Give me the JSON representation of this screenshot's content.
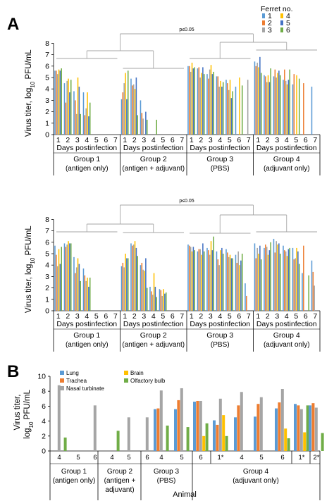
{
  "colors": {
    "ferret": [
      "#5b9bd5",
      "#ed7d31",
      "#a5a5a5",
      "#ffc000",
      "#4472c4",
      "#70ad47"
    ],
    "tissue": {
      "Lung": "#5b9bd5",
      "Trachea": "#ed7d31",
      "Nasal turbinate": "#a5a5a5",
      "Brain": "#ffc000",
      "Olfactory bulb": "#70ad47"
    },
    "bracket": "#a6a6a6"
  },
  "panel_labels": {
    "a": "A",
    "b": "B"
  },
  "legend_a": {
    "title": "Ferret no.",
    "entries": [
      "1",
      "2",
      "3",
      "4",
      "5",
      "6"
    ]
  },
  "chart_data": [
    {
      "type": "bar",
      "panel": "A-top",
      "ylabel": "Virus titer, log10 PFU/mL",
      "ylim": [
        0,
        8
      ],
      "yticks": [
        "0",
        "1",
        "2",
        "3",
        "4",
        "5",
        "6",
        "7",
        "8"
      ],
      "days": [
        "1",
        "2",
        "3",
        "4",
        "5",
        "6",
        "7"
      ],
      "day_axis_label": "Days postinfection",
      "significance": "p≤0.05",
      "groups": [
        {
          "label": [
            "Group 1",
            "(antigen only)"
          ],
          "values": [
            [
              5.6,
              5.6,
              5.3,
              5.7,
              5.6,
              5.8
            ],
            [
              4.5,
              2.8,
              4.7,
              4.9,
              3.7,
              4.8
            ],
            [
              3.8,
              3.0,
              1.8,
              5.0,
              4.2,
              1.8
            ],
            [
              3.7,
              1.7,
              2.3,
              3.7,
              1.6,
              2.8
            ],
            [],
            [],
            []
          ]
        },
        {
          "label": [
            "Group 2",
            "(antigen + adjuvant)"
          ],
          "values": [
            [
              3.1,
              3.7,
              4.5,
              5.4,
              3.1,
              5.6
            ],
            [
              4.9,
              4.3,
              4.4,
              4.0,
              5.0,
              1.7
            ],
            [
              3.0,
              1.9,
              1.4,
              0,
              2.0,
              1.3
            ],
            [
              0,
              0,
              0,
              0,
              0,
              1.3
            ],
            [],
            [],
            []
          ]
        },
        {
          "label": [
            "Group 3",
            "(PBS)"
          ],
          "values": [
            [
              6.0,
              6.0,
              5.5,
              6.3,
              5.8,
              5.9
            ],
            [
              5.8,
              5.9,
              5.0,
              5.4,
              5.9,
              5.3
            ],
            [
              5.3,
              4.9,
              5.7,
              6.1,
              5.3,
              5.5
            ],
            [
              5.1,
              5.1,
              4.2,
              4.7,
              4.2,
              4.6
            ],
            [
              4.8,
              4.5,
              3.9,
              4.8,
              3.2,
              3.8
            ],
            [
              4.2,
              0,
              0,
              5.0,
              0,
              4.3
            ],
            [
              0,
              0,
              4.8,
              0,
              0,
              0
            ]
          ]
        },
        {
          "label": [
            "Group 4",
            "(adjuvant only)"
          ],
          "values": [
            [
              6.4,
              6.0,
              6.3,
              5.9,
              6.8,
              5.4
            ],
            [
              5.2,
              5.1,
              4.6,
              5.2,
              4.6,
              5.8
            ],
            [
              5.1,
              5.7,
              5.0,
              5.4,
              5.6,
              5.2
            ],
            [
              4.8,
              5.7,
              4.7,
              4.4,
              4.8,
              5.7
            ],
            [
              4.4,
              5.3,
              0,
              5.2,
              0,
              4.9
            ],
            [
              0,
              4.5,
              0,
              0,
              0,
              0
            ],
            [
              4.2,
              0,
              0,
              0,
              0,
              0
            ]
          ]
        }
      ]
    },
    {
      "type": "bar",
      "panel": "A-bottom",
      "ylabel": "Virus titer, log10 PFU/mL",
      "ylim": [
        0,
        8
      ],
      "yticks": [
        "0",
        "1",
        "2",
        "3",
        "4",
        "5",
        "6",
        "7",
        "8"
      ],
      "days": [
        "1",
        "2",
        "3",
        "4",
        "5",
        "6",
        "7"
      ],
      "day_axis_label": "Days postinfection",
      "significance": "p≤0.05",
      "groups": [
        {
          "label": [
            "Group 1",
            "(antigen only)"
          ],
          "values": [
            [
              5.7,
              4.9,
              3.9,
              5.4,
              4.1,
              5.6
            ],
            [
              5.9,
              5.6,
              5.8,
              6.1,
              5.9,
              5.9
            ],
            [
              4.7,
              3.3,
              3.8,
              4.6,
              4.1,
              2.6
            ],
            [
              3.7,
              3.1,
              2.6,
              2.9,
              2.1,
              2.9
            ],
            [],
            [],
            []
          ]
        },
        {
          "label": [
            "Group 2",
            "(antigen + adjuvant)"
          ],
          "values": [
            [
              3.9,
              4.2,
              3.8,
              5.0,
              4.6,
              4.6
            ],
            [
              5.9,
              5.7,
              5.8,
              6.1,
              5.5,
              4.8
            ],
            [
              4.0,
              4.2,
              3.6,
              3.5,
              4.6,
              2.0
            ],
            [
              2.1,
              1.7,
              1.4,
              3.3,
              2.1,
              1.2
            ],
            [
              1.9,
              1.8,
              1.3,
              1.9,
              1.5,
              1.6
            ],
            [],
            []
          ]
        },
        {
          "label": [
            "Group 3",
            "(PBS)"
          ],
          "values": [
            [
              5.8,
              5.7,
              5.6,
              5.2,
              5.6,
              5.3
            ],
            [
              5.2,
              5.4,
              5.4,
              4.9,
              5.9,
              5.2
            ],
            [
              5.5,
              5.3,
              4.9,
              6.1,
              5.3,
              6.5
            ],
            [
              5.2,
              4.5,
              4.0,
              5.3,
              5.5,
              5.0
            ],
            [
              5.4,
              5.1,
              4.7,
              4.9,
              4.6,
              4.6
            ],
            [
              4.9,
              4.2,
              5.2,
              4.0,
              4.4,
              5.0
            ],
            [
              2.4,
              1.3,
              0,
              0,
              0,
              0
            ]
          ]
        },
        {
          "label": [
            "Group 4",
            "(adjuvant only)"
          ],
          "values": [
            [
              5.9,
              4.6,
              5.5,
              5.0,
              5.7,
              4.5
            ],
            [
              5.5,
              5.8,
              5.6,
              4.9,
              5.3,
              6.0
            ],
            [
              6.3,
              5.1,
              6.1,
              5.8,
              5.9,
              5.0
            ],
            [
              5.7,
              5.3,
              5.2,
              4.8,
              5.4,
              5.5
            ],
            [
              5.5,
              4.5,
              4.6,
              5.5,
              5.2,
              4.1
            ],
            [
              3.3,
              5.7,
              0,
              0,
              0,
              3.1
            ],
            [
              4.4,
              3.4,
              2.2,
              0,
              0,
              0
            ]
          ]
        }
      ]
    },
    {
      "type": "bar",
      "panel": "B",
      "ylabel": [
        "Virus titer,",
        "log10 PFU/mL"
      ],
      "xlabel": "Animal",
      "ylim": [
        0,
        10
      ],
      "yticks": [
        "0",
        "2",
        "4",
        "6",
        "8",
        "10"
      ],
      "series": [
        "Lung",
        "Trachea",
        "Nasal turbinate",
        "Brain",
        "Olfactory bulb"
      ],
      "groups": [
        {
          "label": [
            "Group 1",
            "(antigen only)"
          ],
          "animals": [
            {
              "id": "4",
              "values": [
                0,
                0,
                8.8,
                0,
                1.8
              ]
            },
            {
              "id": "5",
              "values": [
                0,
                0,
                0,
                0,
                0
              ]
            },
            {
              "id": "6",
              "values": [
                0,
                0,
                6.1,
                0,
                0
              ]
            }
          ]
        },
        {
          "label": [
            "Group 2",
            "(antigen +",
            "adjuvant)"
          ],
          "animals": [
            {
              "id": "4",
              "values": [
                0,
                0,
                0,
                0,
                2.7
              ]
            },
            {
              "id": "5",
              "values": [
                0,
                0,
                4.5,
                0,
                0
              ]
            },
            {
              "id": "6",
              "values": [
                0,
                0,
                4.5,
                0,
                0
              ]
            }
          ]
        },
        {
          "label": [
            "Group 3",
            "(PBS)"
          ],
          "animals": [
            {
              "id": "4",
              "values": [
                5.6,
                5.7,
                8.1,
                0,
                3.4
              ]
            },
            {
              "id": "5",
              "values": [
                5.6,
                6.8,
                8.4,
                0,
                3.2
              ]
            },
            {
              "id": "6",
              "values": [
                6.6,
                6.7,
                6.7,
                2.0,
                3.7
              ]
            },
            {
              "id": "1*",
              "values": [
                4.1,
                3.5,
                7.0,
                4.8,
                2.0
              ]
            }
          ]
        },
        {
          "label": [
            "Group 4",
            "(adjuvant only)"
          ],
          "animals": [
            {
              "id": "4",
              "values": [
                4.5,
                6.1,
                7.9,
                0,
                0
              ]
            },
            {
              "id": "5",
              "values": [
                4.6,
                6.3,
                7.2,
                0,
                0
              ]
            },
            {
              "id": "6",
              "values": [
                5.7,
                6.5,
                8.3,
                3.0,
                1.7
              ]
            },
            {
              "id": "1*",
              "values": [
                6.3,
                6.1,
                5.6,
                2.5,
                6.1
              ]
            },
            {
              "id": "2*",
              "values": [
                6.1,
                6.4,
                5.8,
                0,
                2.4
              ]
            }
          ]
        }
      ]
    }
  ]
}
